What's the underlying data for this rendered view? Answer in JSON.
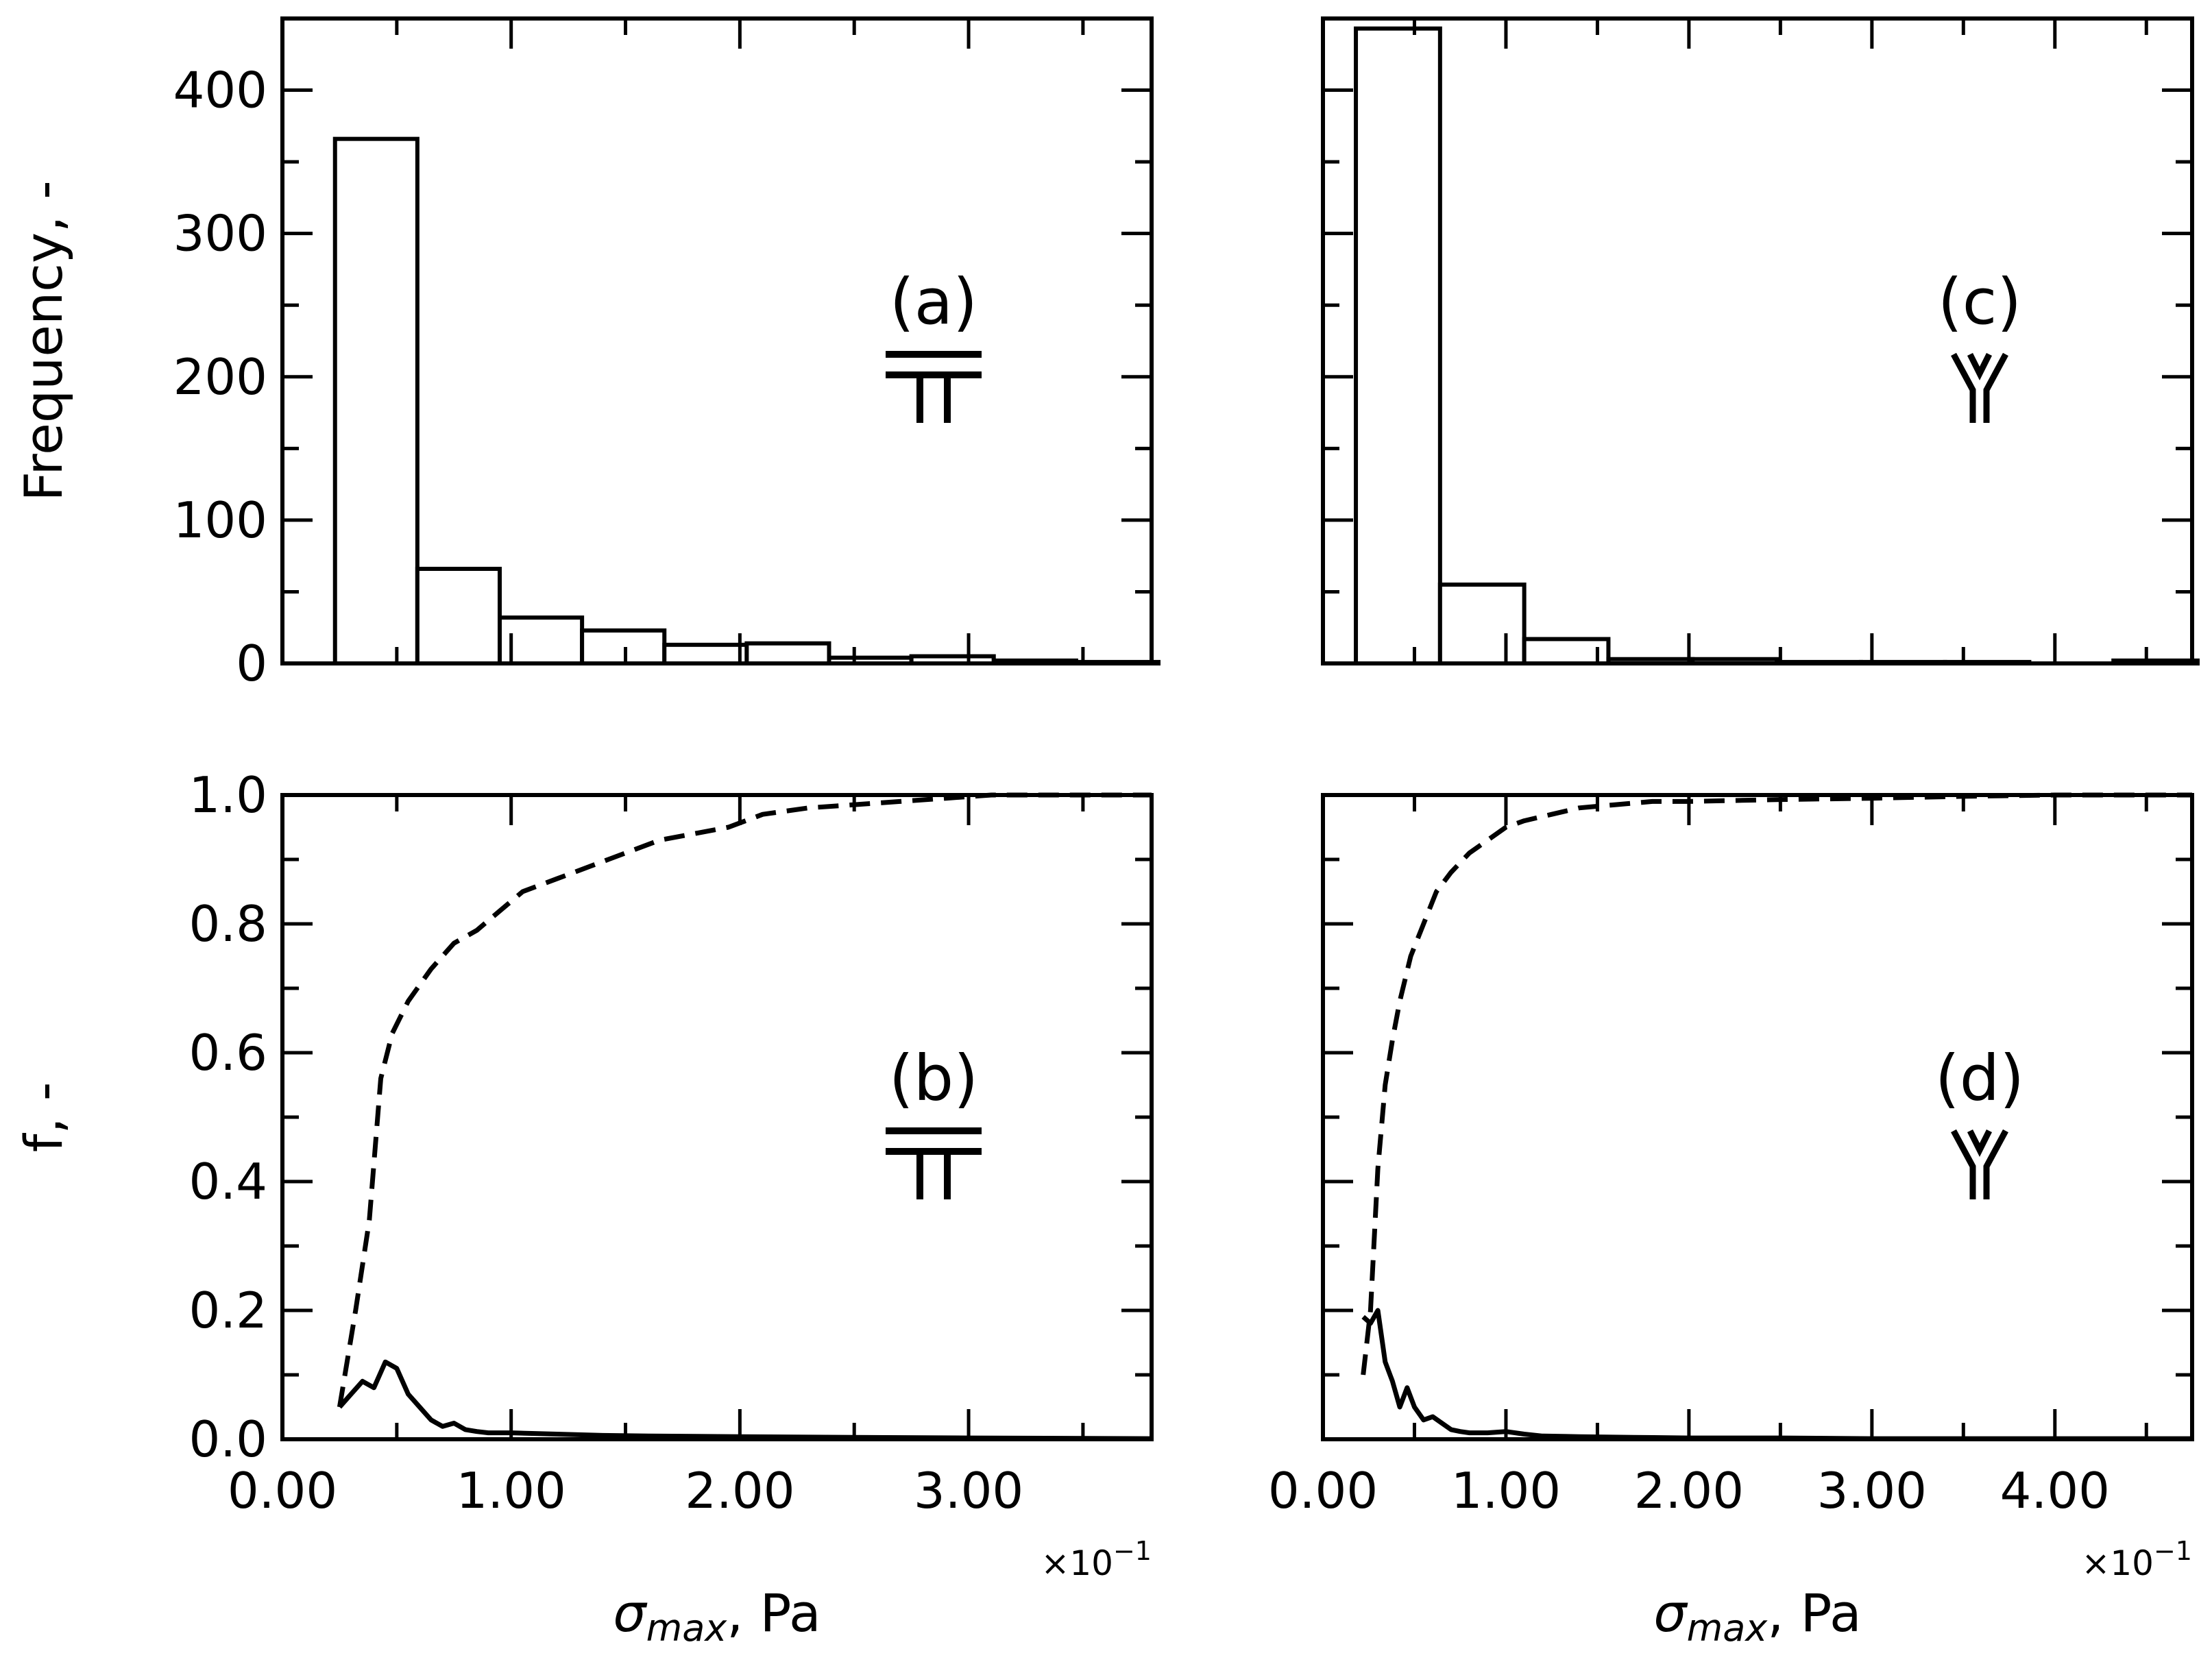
{
  "chart_data": [
    {
      "id": "a",
      "type": "bar",
      "panel_label": "(a)",
      "symbol": "T-junction",
      "ylabel": "Frequency, -",
      "xlim": [
        0,
        3.8
      ],
      "ylim": [
        0,
        450
      ],
      "yticks": [
        0,
        100,
        200,
        300,
        400
      ],
      "ytick_labels": [
        "0",
        "100",
        "200",
        "300",
        "400"
      ],
      "bin_edges": [
        0.23,
        0.59,
        0.95,
        1.31,
        1.67,
        2.03,
        2.39,
        2.75,
        3.11,
        3.47,
        3.83
      ],
      "values": [
        366,
        66,
        32,
        23,
        13,
        14,
        4,
        5,
        2,
        1
      ]
    },
    {
      "id": "c",
      "type": "bar",
      "panel_label": "(c)",
      "symbol": "Y-junction",
      "ylabel": "",
      "xlim": [
        0,
        4.75
      ],
      "ylim": [
        0,
        450
      ],
      "yticks": [
        0,
        100,
        200,
        300,
        400
      ],
      "ytick_labels": [
        "",
        "",
        "",
        "",
        ""
      ],
      "bin_edges": [
        0.18,
        0.64,
        1.1,
        1.56,
        2.02,
        2.48,
        2.94,
        3.4,
        3.86,
        4.32,
        4.78
      ],
      "values": [
        443,
        55,
        17,
        3,
        3,
        1,
        1,
        1,
        0,
        2
      ]
    },
    {
      "id": "b",
      "type": "line",
      "panel_label": "(b)",
      "symbol": "T-junction",
      "ylabel": "f, -",
      "xlabel_main": "σ",
      "xlabel_sub": "max",
      "xlabel_unit": ", Pa",
      "x_multiplier": "×10",
      "x_multiplier_exp": "−1",
      "xlim": [
        0,
        3.8
      ],
      "ylim": [
        0,
        1.0
      ],
      "xticks": [
        0,
        1,
        2,
        3
      ],
      "xtick_labels": [
        "0.00",
        "1.00",
        "2.00",
        "3.00"
      ],
      "yticks": [
        0,
        0.2,
        0.4,
        0.6,
        0.8,
        1.0
      ],
      "ytick_labels": [
        "0.0",
        "0.2",
        "0.4",
        "0.6",
        "0.8",
        "1.0"
      ],
      "series": [
        {
          "name": "cumulative",
          "style": "dashed",
          "x": [
            0.25,
            0.32,
            0.38,
            0.43,
            0.48,
            0.55,
            0.65,
            0.75,
            0.85,
            0.95,
            1.05,
            1.2,
            1.35,
            1.5,
            1.65,
            1.8,
            1.95,
            2.1,
            2.3,
            2.5,
            2.7,
            2.9,
            3.1,
            3.4,
            3.8
          ],
          "y": [
            0.05,
            0.2,
            0.34,
            0.56,
            0.63,
            0.68,
            0.73,
            0.77,
            0.79,
            0.82,
            0.85,
            0.87,
            0.89,
            0.91,
            0.93,
            0.94,
            0.95,
            0.97,
            0.98,
            0.985,
            0.99,
            0.995,
            1.0,
            1.0,
            1.0
          ]
        },
        {
          "name": "frequency",
          "style": "solid",
          "x": [
            0.25,
            0.3,
            0.35,
            0.4,
            0.45,
            0.5,
            0.55,
            0.6,
            0.65,
            0.7,
            0.75,
            0.8,
            0.85,
            0.9,
            1.0,
            1.2,
            1.4,
            1.6,
            2.0,
            2.5,
            3.0,
            3.8
          ],
          "y": [
            0.05,
            0.07,
            0.09,
            0.08,
            0.12,
            0.11,
            0.07,
            0.05,
            0.03,
            0.02,
            0.025,
            0.015,
            0.012,
            0.01,
            0.01,
            0.008,
            0.006,
            0.005,
            0.004,
            0.003,
            0.002,
            0.001
          ]
        }
      ]
    },
    {
      "id": "d",
      "type": "line",
      "panel_label": "(d)",
      "symbol": "Y-junction",
      "ylabel": "",
      "xlabel_main": "σ",
      "xlabel_sub": "max",
      "xlabel_unit": ", Pa",
      "x_multiplier": "×10",
      "x_multiplier_exp": "−1",
      "xlim": [
        0,
        4.75
      ],
      "ylim": [
        0,
        1.0
      ],
      "xticks": [
        0,
        1,
        2,
        3,
        4
      ],
      "xtick_labels": [
        "0.00",
        "1.00",
        "2.00",
        "3.00",
        "4.00"
      ],
      "yticks": [
        0,
        0.2,
        0.4,
        0.6,
        0.8,
        1.0
      ],
      "ytick_labels": [
        "",
        "",
        "",
        "",
        "",
        ""
      ],
      "series": [
        {
          "name": "cumulative",
          "style": "dashed",
          "x": [
            0.22,
            0.26,
            0.3,
            0.34,
            0.38,
            0.42,
            0.48,
            0.55,
            0.62,
            0.7,
            0.8,
            0.9,
            1.0,
            1.1,
            1.25,
            1.4,
            1.6,
            1.8,
            2.0,
            2.5,
            3.0,
            3.5,
            4.0,
            4.75
          ],
          "y": [
            0.1,
            0.2,
            0.42,
            0.55,
            0.62,
            0.68,
            0.75,
            0.8,
            0.85,
            0.88,
            0.91,
            0.93,
            0.95,
            0.96,
            0.97,
            0.98,
            0.985,
            0.99,
            0.99,
            0.993,
            0.995,
            0.998,
            1.0,
            1.0
          ]
        },
        {
          "name": "frequency",
          "style": "solid",
          "x": [
            0.22,
            0.26,
            0.3,
            0.34,
            0.38,
            0.42,
            0.46,
            0.5,
            0.55,
            0.6,
            0.65,
            0.7,
            0.75,
            0.8,
            0.9,
            1.0,
            1.1,
            1.2,
            1.4,
            1.7,
            2.0,
            2.5,
            3.0,
            4.75
          ],
          "y": [
            0.19,
            0.18,
            0.2,
            0.12,
            0.09,
            0.05,
            0.08,
            0.05,
            0.03,
            0.035,
            0.025,
            0.015,
            0.012,
            0.01,
            0.01,
            0.012,
            0.008,
            0.005,
            0.004,
            0.003,
            0.002,
            0.002,
            0.001,
            0.001
          ]
        }
      ]
    }
  ]
}
